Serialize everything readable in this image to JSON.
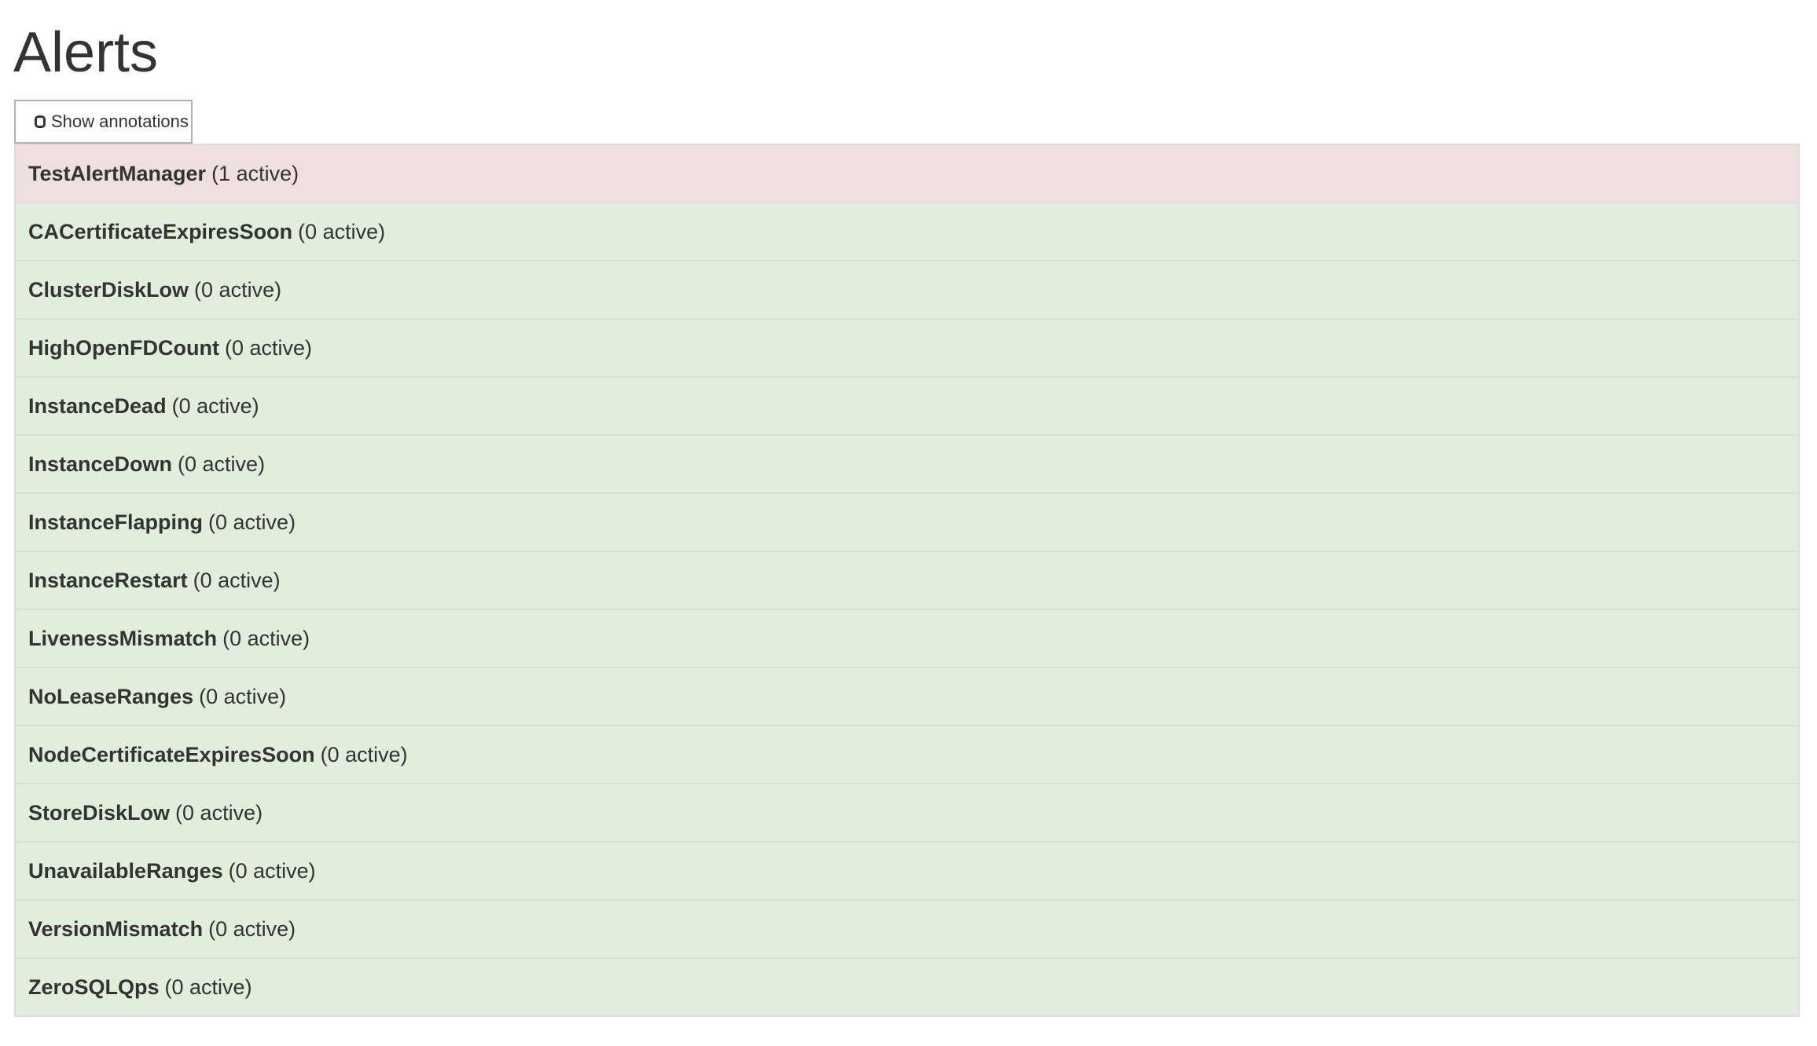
{
  "page": {
    "title": "Alerts"
  },
  "toolbar": {
    "show_annotations_label": "Show annotations",
    "show_annotations_checked": false
  },
  "colors": {
    "firing": "#efdfe0",
    "inactive": "#e1eedb",
    "border": "#dddddd"
  },
  "alerts": [
    {
      "name": "TestAlertManager",
      "status": "(1 active)",
      "state": "firing"
    },
    {
      "name": "CACertificateExpiresSoon",
      "status": "(0 active)",
      "state": "inactive"
    },
    {
      "name": "ClusterDiskLow",
      "status": "(0 active)",
      "state": "inactive"
    },
    {
      "name": "HighOpenFDCount",
      "status": "(0 active)",
      "state": "inactive"
    },
    {
      "name": "InstanceDead",
      "status": "(0 active)",
      "state": "inactive"
    },
    {
      "name": "InstanceDown",
      "status": "(0 active)",
      "state": "inactive"
    },
    {
      "name": "InstanceFlapping",
      "status": "(0 active)",
      "state": "inactive"
    },
    {
      "name": "InstanceRestart",
      "status": "(0 active)",
      "state": "inactive"
    },
    {
      "name": "LivenessMismatch",
      "status": "(0 active)",
      "state": "inactive"
    },
    {
      "name": "NoLeaseRanges",
      "status": "(0 active)",
      "state": "inactive"
    },
    {
      "name": "NodeCertificateExpiresSoon",
      "status": "(0 active)",
      "state": "inactive"
    },
    {
      "name": "StoreDiskLow",
      "status": "(0 active)",
      "state": "inactive"
    },
    {
      "name": "UnavailableRanges",
      "status": "(0 active)",
      "state": "inactive"
    },
    {
      "name": "VersionMismatch",
      "status": "(0 active)",
      "state": "inactive"
    },
    {
      "name": "ZeroSQLQps",
      "status": "(0 active)",
      "state": "inactive"
    }
  ]
}
